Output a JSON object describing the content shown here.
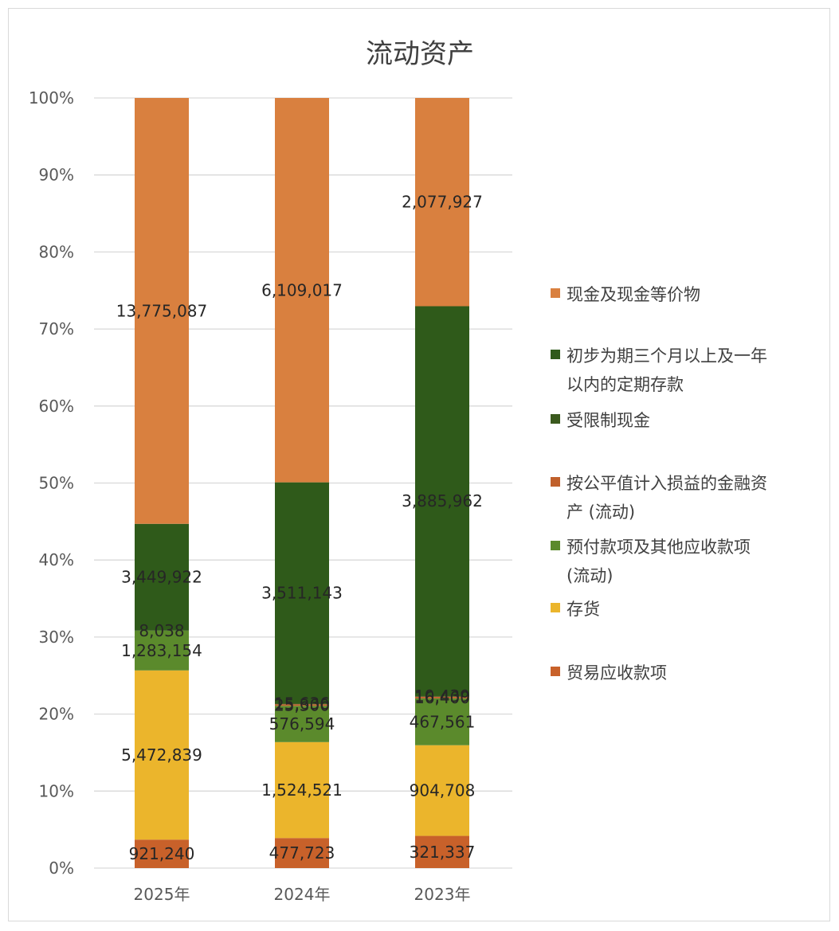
{
  "chart_data": {
    "type": "bar",
    "stacked": "percent",
    "title": "流动资产",
    "xlabel": "",
    "ylabel": "",
    "ylim": [
      0,
      100
    ],
    "y_ticks": [
      "0%",
      "10%",
      "20%",
      "30%",
      "40%",
      "50%",
      "60%",
      "70%",
      "80%",
      "90%",
      "100%"
    ],
    "categories": [
      "2025年",
      "2024年",
      "2023年"
    ],
    "grid": true,
    "legend_position": "right",
    "series": [
      {
        "name": "贸易应收款项",
        "color": "#c8612a",
        "values": [
          921240,
          477723,
          321337
        ]
      },
      {
        "name": "存货",
        "color": "#ebb52c",
        "values": [
          5472839,
          1524521,
          904708
        ]
      },
      {
        "name": "预付款项及其他应收款项(流动)",
        "color": "#5b8a2c",
        "values": [
          1283154,
          576594,
          467561
        ]
      },
      {
        "name": "按公平值计入损益的金融资产(流动)",
        "color": "#c0602b",
        "values": [
          0,
          25300,
          16400
        ]
      },
      {
        "name": "受限制现金",
        "color": "#3b5a1e",
        "values": [
          8038,
          15636,
          10439
        ]
      },
      {
        "name": "初步为期三个月以上及一年以内的定期存款",
        "color": "#2f5a1a",
        "values": [
          3449922,
          3511143,
          3885962
        ]
      },
      {
        "name": "现金及现金等价物",
        "color": "#d9803f",
        "values": [
          13775087,
          6109017,
          2077927
        ]
      }
    ],
    "data_labels": [
      [
        "921,240",
        "477,723",
        "321,337"
      ],
      [
        "5,472,839",
        "1,524,521",
        "904,708"
      ],
      [
        "1,283,154",
        "576,594",
        "467,561"
      ],
      [
        "",
        "25,300",
        "16,400"
      ],
      [
        "8,038",
        "15,636",
        "10,439"
      ],
      [
        "3,449,922",
        "3,511,143",
        "3,885,962"
      ],
      [
        "13,775,087",
        "6,109,017",
        "2,077,927"
      ]
    ],
    "legend": [
      {
        "lines": [
          "现金及现金等价物"
        ],
        "color": "#d9803f"
      },
      {
        "lines": [
          "初步为期三个月以上及一年",
          "以内的定期存款"
        ],
        "color": "#2f5a1a"
      },
      {
        "lines": [
          "受限制现金"
        ],
        "color": "#3b5a1e"
      },
      {
        "lines": [
          "按公平值计入损益的金融资",
          "产 (流动)"
        ],
        "color": "#c0602b"
      },
      {
        "lines": [
          "预付款项及其他应收款项",
          "(流动)"
        ],
        "color": "#5b8a2c"
      },
      {
        "lines": [
          "存货"
        ],
        "color": "#ebb52c"
      },
      {
        "lines": [
          "贸易应收款项"
        ],
        "color": "#c8612a"
      }
    ]
  }
}
